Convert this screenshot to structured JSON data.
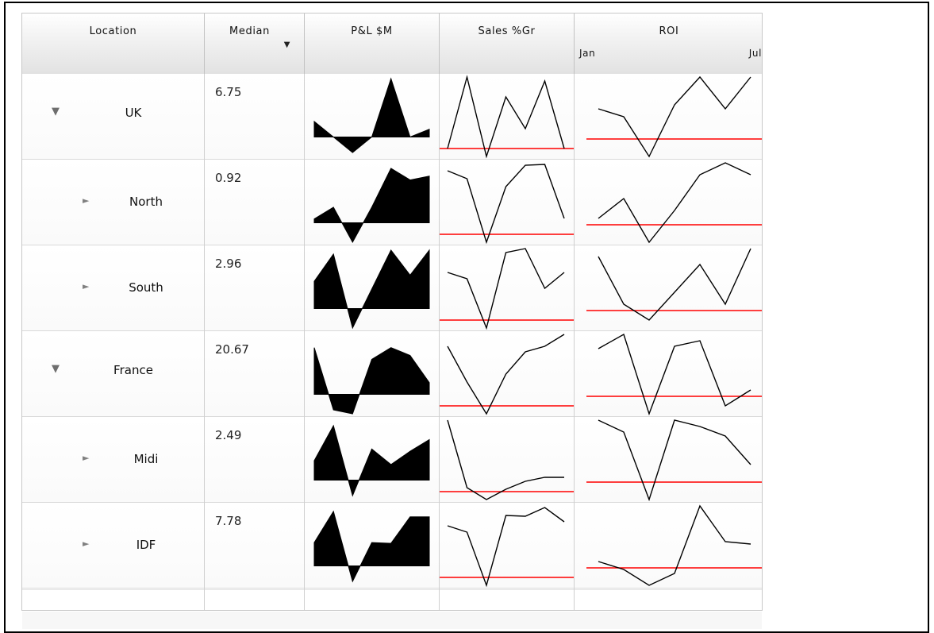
{
  "columns": {
    "location": "Location",
    "median": "Median",
    "pl": "P&L $M",
    "sales": "Sales %Gr",
    "roi": "ROI",
    "roi_min_label": "Jan",
    "roi_max_label": "Jul"
  },
  "median_sort_icon": "sort-descending-icon",
  "colors": {
    "baseline": "#ff0000",
    "line": "#000000",
    "fill": "#000000"
  },
  "rows": [
    {
      "location": "UK",
      "level": 0,
      "expanded": true,
      "median": "6.75",
      "pl": [
        0.45,
        0.25,
        0.05,
        0.25,
        1.0,
        0.25,
        0.35
      ],
      "sales": [
        0.1,
        1.0,
        0.0,
        0.75,
        0.35,
        0.95,
        0.1
      ],
      "roi": [
        0.6,
        0.5,
        0.0,
        0.65,
        1.0,
        0.6,
        1.0
      ]
    },
    {
      "location": "North",
      "level": 1,
      "expanded": false,
      "median": "0.92",
      "pl": [
        0.3,
        0.45,
        0.0,
        0.45,
        0.95,
        0.8,
        0.85
      ],
      "sales": [
        0.9,
        0.8,
        0.0,
        0.7,
        0.97,
        0.98,
        0.3
      ],
      "roi": [
        0.3,
        0.55,
        0.0,
        0.4,
        0.85,
        1.0,
        0.85
      ]
    },
    {
      "location": "South",
      "level": 1,
      "expanded": false,
      "median": "2.96",
      "pl": [
        0.6,
        0.95,
        0.0,
        0.5,
        1.0,
        0.68,
        1.0
      ],
      "sales": [
        0.7,
        0.62,
        0.0,
        0.95,
        1.0,
        0.5,
        0.7
      ],
      "roi": [
        0.9,
        0.3,
        0.1,
        0.45,
        0.8,
        0.3,
        1.0
      ]
    },
    {
      "location": "France",
      "level": 0,
      "expanded": true,
      "median": "20.67",
      "pl": [
        0.85,
        0.05,
        0.0,
        0.7,
        0.85,
        0.75,
        0.4
      ],
      "sales": [
        0.85,
        0.4,
        0.0,
        0.5,
        0.78,
        0.85,
        1.0
      ],
      "roi": [
        0.82,
        1.0,
        0.0,
        0.85,
        0.92,
        0.1,
        0.3
      ]
    },
    {
      "location": "Midi",
      "level": 1,
      "expanded": false,
      "median": "2.49",
      "pl": [
        0.5,
        0.95,
        0.05,
        0.65,
        0.45,
        0.62,
        0.77
      ],
      "sales": [
        1.0,
        0.15,
        0.0,
        0.13,
        0.23,
        0.28,
        0.28
      ],
      "roi": [
        1.0,
        0.85,
        0.0,
        1.0,
        0.92,
        0.8,
        0.44
      ]
    },
    {
      "location": "IDF",
      "level": 1,
      "expanded": false,
      "median": "7.78",
      "pl": [
        0.55,
        0.95,
        0.05,
        0.55,
        0.54,
        0.88,
        0.88
      ],
      "sales": [
        0.75,
        0.67,
        0.0,
        0.88,
        0.87,
        0.98,
        0.8
      ],
      "roi": [
        0.3,
        0.2,
        0.0,
        0.15,
        1.0,
        0.55,
        0.52
      ]
    }
  ]
}
